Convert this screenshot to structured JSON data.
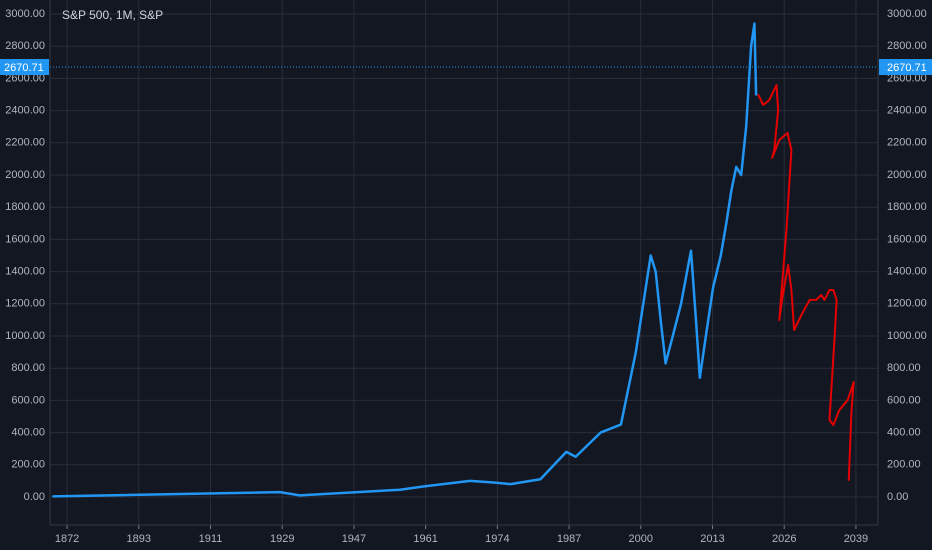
{
  "chart_data": {
    "type": "line",
    "title": "S&P 500, 1M, S&P",
    "xlim": [
      1867,
      2043
    ],
    "xticks": [
      1872,
      1893,
      1911,
      1929,
      1947,
      1961,
      1974,
      1987,
      2000,
      2013,
      2026,
      2039
    ],
    "ylim": [
      -174,
      3087
    ],
    "yticks": [
      {
        "value": 0,
        "label": "0.00"
      },
      {
        "value": 200,
        "label": "200.00"
      },
      {
        "value": 400,
        "label": "400.00"
      },
      {
        "value": 600,
        "label": "600.00"
      },
      {
        "value": 800,
        "label": "800.00"
      },
      {
        "value": 1000,
        "label": "1000.00"
      },
      {
        "value": 1200,
        "label": "1200.00"
      },
      {
        "value": 1400,
        "label": "1400.00"
      },
      {
        "value": 1600,
        "label": "1600.00"
      },
      {
        "value": 1800,
        "label": "1800.00"
      },
      {
        "value": 2000,
        "label": "2000.00"
      },
      {
        "value": 2200,
        "label": "2200.00"
      },
      {
        "value": 2400,
        "label": "2400.00"
      },
      {
        "value": 2600,
        "label": "2600.00"
      },
      {
        "value": 2800,
        "label": "2800.00"
      },
      {
        "value": 3000,
        "label": "3000.00"
      }
    ],
    "grid": true,
    "price_line": 2670.71,
    "price_line_color": "#2196f3",
    "series": [
      {
        "color": "#2196f3",
        "x": [
          1868,
          1928.4,
          1933.4,
          1956,
          1960.5,
          1969.1,
          1973.3,
          1976.4,
          1981.8,
          1986.5,
          1988.2,
          1992.7,
          1996.4,
          1999.1,
          2000.9,
          2001.8,
          2002.7,
          2003.6,
          2004.5,
          2005.8,
          2007.3,
          2009.1,
          2010,
          2010.7,
          2011.8,
          2013.1,
          2014.5,
          2015.5,
          2016.4,
          2017.3,
          2018.2,
          2019.1,
          2020,
          2020.6,
          2020.9
        ],
        "values": [
          4,
          30,
          10,
          45,
          65,
          100,
          90,
          80,
          110,
          280,
          250,
          400,
          450,
          900,
          1300,
          1500,
          1400,
          1100,
          830,
          1000,
          1200,
          1530,
          1100,
          740,
          1000,
          1300,
          1500,
          1700,
          1900,
          2050,
          2000,
          2300,
          2800,
          2940,
          2500
        ]
      },
      {
        "color": "#e50000",
        "x": [
          2021.3,
          2022.2,
          2023.3,
          2024.6,
          2024.9,
          2024.2,
          2023.8,
          2025.1,
          2026.6,
          2027.3,
          2026.4,
          2025.1,
          2025.6,
          2026.7,
          2027.3,
          2027.8,
          2029.1,
          2030.6,
          2031.8,
          2032.7,
          2033.3,
          2034.2,
          2034.9,
          2035.5,
          2035.1,
          2034.2,
          2034.9,
          2036,
          2037.5,
          2038.6,
          2038.2,
          2037.7
        ],
        "values": [
          2497,
          2435,
          2466,
          2559,
          2404,
          2155,
          2106,
          2217,
          2261,
          2155,
          1658,
          1099,
          1224,
          1441,
          1286,
          1037,
          1130,
          1224,
          1224,
          1255,
          1224,
          1286,
          1286,
          1224,
          975,
          478,
          447,
          540,
          602,
          714,
          540,
          106
        ]
      }
    ]
  }
}
